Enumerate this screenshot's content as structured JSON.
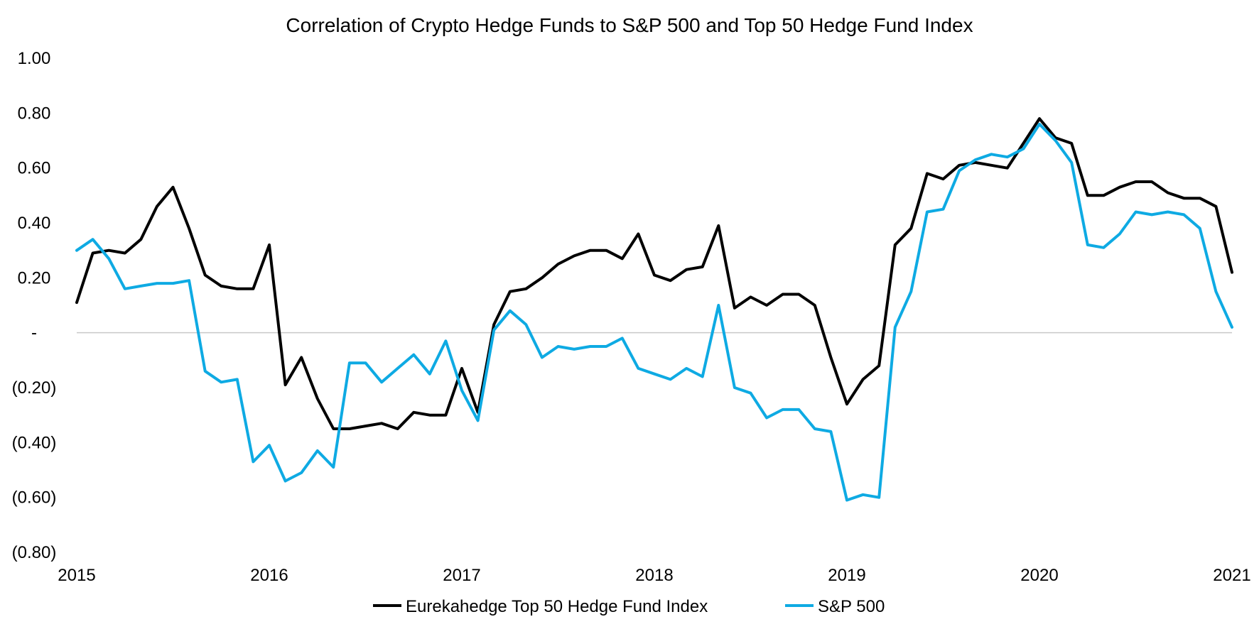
{
  "chart_data": {
    "type": "line",
    "title": "Correlation of Crypto Hedge Funds to S&P 500 and Top 50 Hedge Fund Index",
    "xlabel": "",
    "ylabel": "",
    "xlim": [
      2015,
      2021
    ],
    "ylim": [
      -0.8,
      1.0
    ],
    "x_ticks": [
      "2015",
      "2016",
      "2017",
      "2018",
      "2019",
      "2020",
      "2021"
    ],
    "y_ticks": [
      {
        "value": 1.0,
        "label": "1.00"
      },
      {
        "value": 0.8,
        "label": "0.80"
      },
      {
        "value": 0.6,
        "label": "0.60"
      },
      {
        "value": 0.4,
        "label": "0.40"
      },
      {
        "value": 0.2,
        "label": "0.20"
      },
      {
        "value": 0.0,
        "label": "-"
      },
      {
        "value": -0.2,
        "label": "(0.20)"
      },
      {
        "value": -0.4,
        "label": "(0.40)"
      },
      {
        "value": -0.6,
        "label": "(0.60)"
      },
      {
        "value": -0.8,
        "label": "(0.80)"
      }
    ],
    "zero_line": true,
    "legend_position": "bottom",
    "series": [
      {
        "name": "Eurekahedge Top 50 Hedge Fund Index",
        "color": "#000000",
        "values": [
          0.11,
          0.29,
          0.3,
          0.29,
          0.34,
          0.46,
          0.53,
          0.38,
          0.21,
          0.17,
          0.16,
          0.16,
          0.32,
          -0.19,
          -0.09,
          -0.24,
          -0.35,
          -0.35,
          -0.34,
          -0.33,
          -0.35,
          -0.29,
          -0.3,
          -0.3,
          -0.13,
          -0.29,
          0.03,
          0.15,
          0.16,
          0.2,
          0.25,
          0.28,
          0.3,
          0.3,
          0.27,
          0.36,
          0.21,
          0.19,
          0.23,
          0.24,
          0.39,
          0.09,
          0.13,
          0.1,
          0.14,
          0.14,
          0.1,
          -0.09,
          -0.26,
          -0.17,
          -0.12,
          0.32,
          0.38,
          0.58,
          0.56,
          0.61,
          0.62,
          0.61,
          0.6,
          0.69,
          0.78,
          0.71,
          0.69,
          0.5,
          0.5,
          0.53,
          0.55,
          0.55,
          0.51,
          0.49,
          0.49,
          0.46,
          0.22
        ]
      },
      {
        "name": "S&P 500",
        "color": "#0eaae3",
        "values": [
          0.3,
          0.34,
          0.27,
          0.16,
          0.17,
          0.18,
          0.18,
          0.19,
          -0.14,
          -0.18,
          -0.17,
          -0.47,
          -0.41,
          -0.54,
          -0.51,
          -0.43,
          -0.49,
          -0.11,
          -0.11,
          -0.18,
          -0.13,
          -0.08,
          -0.15,
          -0.03,
          -0.21,
          -0.32,
          0.01,
          0.08,
          0.03,
          -0.09,
          -0.05,
          -0.06,
          -0.05,
          -0.05,
          -0.02,
          -0.13,
          -0.15,
          -0.17,
          -0.13,
          -0.16,
          0.1,
          -0.2,
          -0.22,
          -0.31,
          -0.28,
          -0.28,
          -0.35,
          -0.36,
          -0.61,
          -0.59,
          -0.6,
          0.02,
          0.15,
          0.44,
          0.45,
          0.59,
          0.63,
          0.65,
          0.64,
          0.67,
          0.76,
          0.7,
          0.62,
          0.32,
          0.31,
          0.36,
          0.44,
          0.43,
          0.44,
          0.43,
          0.38,
          0.15,
          0.02
        ]
      }
    ]
  }
}
